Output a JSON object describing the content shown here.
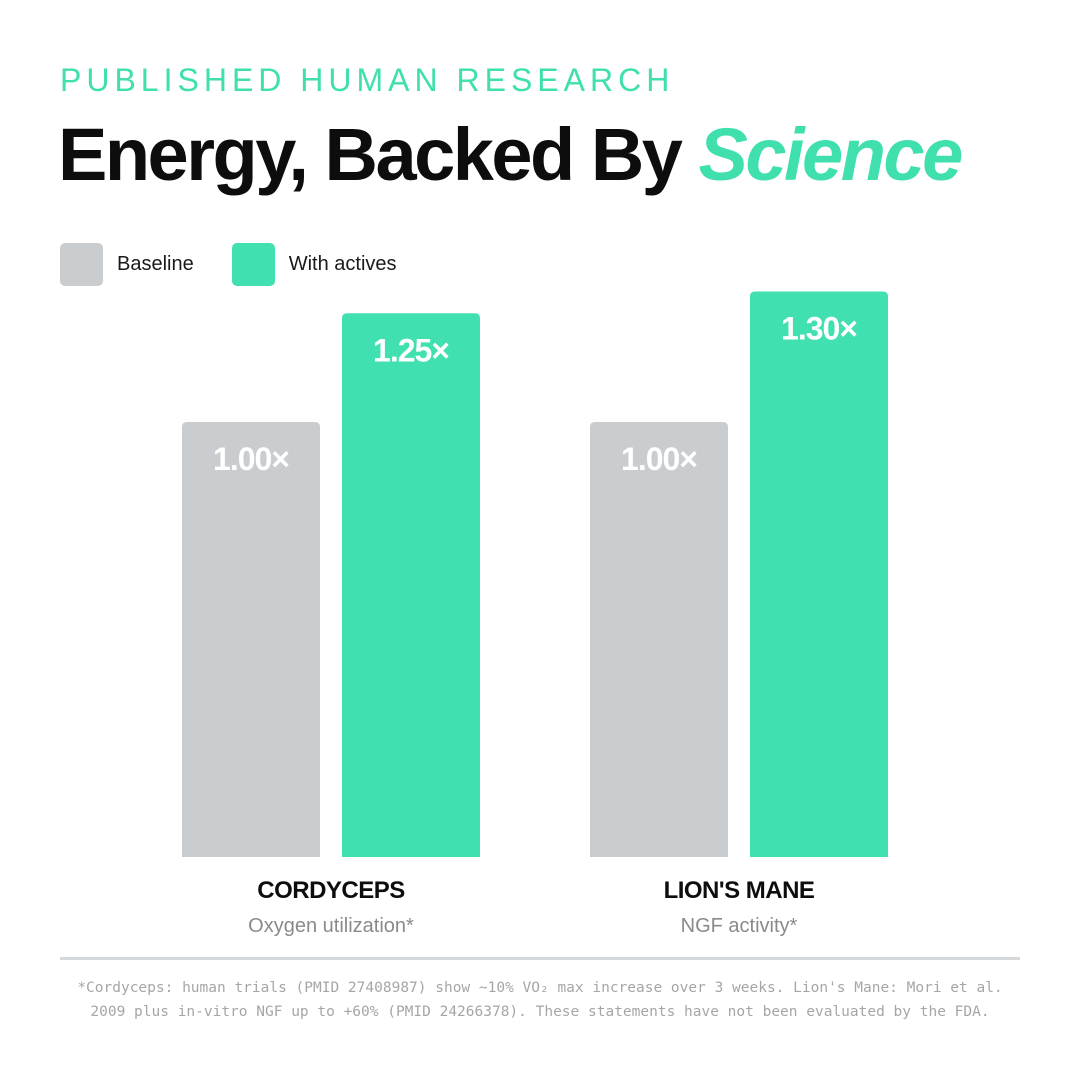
{
  "eyebrow": "PUBLISHED HUMAN RESEARCH",
  "headline": {
    "main": "Energy, Backed By ",
    "accent": "Science"
  },
  "colors": {
    "baseline": "#c9cdd0",
    "actives": "#40e0b0",
    "accent": "#3fdfae"
  },
  "legend": [
    {
      "label": "Baseline",
      "color": "#c9cdd0"
    },
    {
      "label": "With actives",
      "color": "#40e0b0"
    }
  ],
  "chart_data": {
    "type": "bar",
    "categories": [
      "CORDYCEPS",
      "LION'S MANE"
    ],
    "subtitles": [
      "Oxygen utilization*",
      "NGF activity*"
    ],
    "series": [
      {
        "name": "Baseline",
        "values": [
          1.0,
          1.0
        ],
        "labels": [
          "1.00×",
          "1.00×"
        ]
      },
      {
        "name": "With actives",
        "values": [
          1.25,
          1.3
        ],
        "labels": [
          "1.25×",
          "1.30×"
        ]
      }
    ],
    "ylim": [
      0,
      1.5
    ],
    "grid": false,
    "legend_position": "top-left"
  },
  "footnote": {
    "line1": "*Cordyceps: human trials (PMID 27408987) show ~10% VO₂ max increase over 3 weeks. Lion's Mane: Mori et al.",
    "line2": "2009 plus in-vitro NGF up to +60% (PMID 24266378). These statements have not been evaluated by the FDA."
  }
}
